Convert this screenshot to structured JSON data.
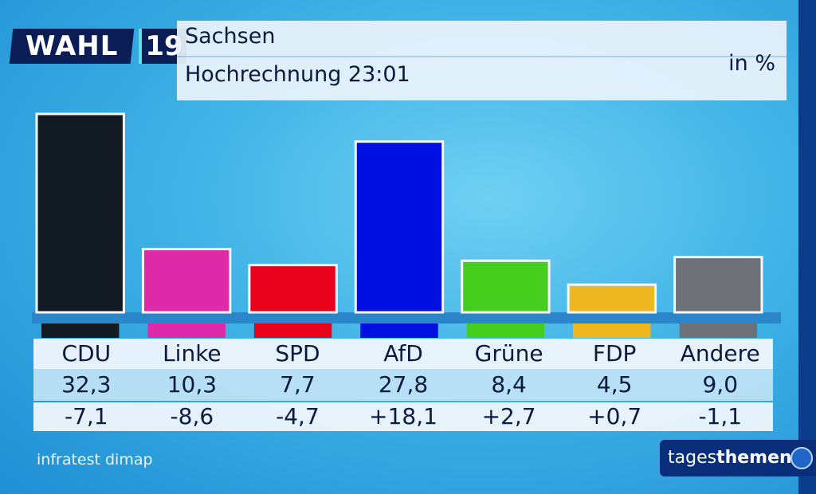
{
  "header": {
    "logo_word": "WAHL",
    "logo_number": "19",
    "region": "Sachsen",
    "subtitle": "Hochrechnung 23:01",
    "unit": "in %"
  },
  "chart_data": {
    "type": "bar",
    "categories": [
      "CDU",
      "Linke",
      "SPD",
      "AfD",
      "Grüne",
      "FDP",
      "Andere"
    ],
    "values": [
      32.3,
      10.3,
      7.7,
      27.8,
      8.4,
      4.5,
      9.0
    ],
    "value_labels": [
      "32,3",
      "10,3",
      "7,7",
      "27,8",
      "8,4",
      "4,5",
      "9,0"
    ],
    "change_labels": [
      "-7,1",
      "-8,6",
      "-4,7",
      "+18,1",
      "+2,7",
      "+0,7",
      "-1,1"
    ],
    "changes": [
      -7.1,
      -8.6,
      -4.7,
      18.1,
      2.7,
      0.7,
      -1.1
    ],
    "colors": [
      "#121a24",
      "#de2aa8",
      "#e8001c",
      "#0010e0",
      "#46ce1e",
      "#f0b820",
      "#6e7278"
    ],
    "title": "Sachsen",
    "subtitle": "Hochrechnung 23:01",
    "ylabel": "in %",
    "ylim": [
      0,
      32.3
    ],
    "grid": false,
    "legend": "none"
  },
  "footer": {
    "source": "infratest dimap",
    "broadcaster_part1": "tages",
    "broadcaster_part2": "themen"
  }
}
